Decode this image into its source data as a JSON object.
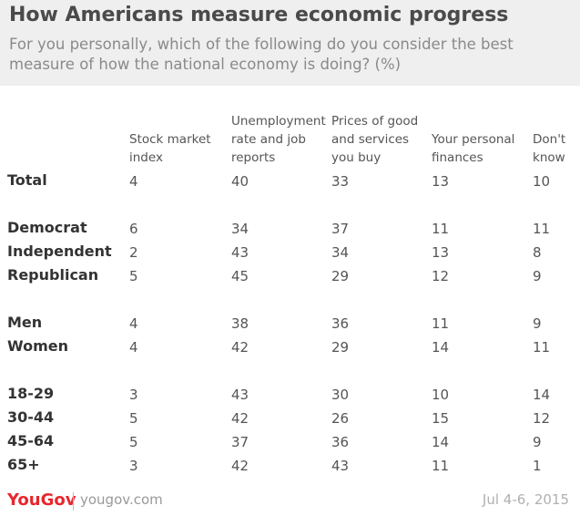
{
  "title": "How Americans measure economic progress",
  "subtitle": "For you personally, which of the following do you consider the best measure of how the national economy is doing? (%)",
  "chart_data": {
    "type": "table",
    "columns": [
      [
        "Stock market",
        "index"
      ],
      [
        "Unemployment",
        "rate and job",
        "reports"
      ],
      [
        "Prices of good",
        "and services",
        "you buy"
      ],
      [
        "Your personal",
        "finances"
      ],
      [
        "Don't",
        "know"
      ]
    ],
    "rows": [
      {
        "label": "Total",
        "values": [
          4,
          40,
          33,
          13,
          10
        ]
      },
      {
        "label": "Democrat",
        "values": [
          6,
          34,
          37,
          11,
          11
        ]
      },
      {
        "label": "Independent",
        "values": [
          2,
          43,
          34,
          13,
          8
        ]
      },
      {
        "label": "Republican",
        "values": [
          5,
          45,
          29,
          12,
          9
        ]
      },
      {
        "label": "Men",
        "values": [
          4,
          38,
          36,
          11,
          9
        ]
      },
      {
        "label": "Women",
        "values": [
          4,
          42,
          29,
          14,
          11
        ]
      },
      {
        "label": "18-29",
        "values": [
          3,
          43,
          30,
          10,
          14
        ]
      },
      {
        "label": "30-44",
        "values": [
          5,
          42,
          26,
          15,
          12
        ]
      },
      {
        "label": "45-64",
        "values": [
          5,
          37,
          36,
          14,
          9
        ]
      },
      {
        "label": "65+",
        "values": [
          3,
          42,
          43,
          11,
          1
        ]
      }
    ]
  },
  "footer": {
    "logo": "YouGov",
    "site": "yougov.com",
    "date": "Jul 4-6, 2015"
  },
  "colors": {
    "header_bg": "#efefef",
    "brand": "#e8262d"
  }
}
